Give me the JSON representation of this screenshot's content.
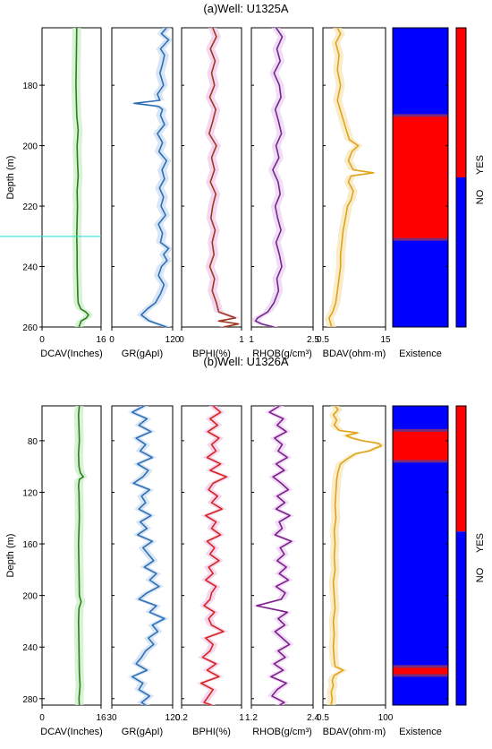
{
  "chart_data": [
    {
      "type": "line",
      "title": "(a)Well: U1325A",
      "ylabel": "Depth (m)",
      "depth_range": [
        161,
        260
      ],
      "depth_ticks": [
        180,
        200,
        220,
        240,
        260
      ],
      "tracks": [
        {
          "name": "DCAV(Inches)",
          "xlim": [
            0,
            16
          ],
          "ticks": [
            "0",
            "16"
          ],
          "color": "#2e7d1a",
          "band": "#c8efc8",
          "depth": [
            161,
            170,
            180,
            190,
            195,
            200,
            205,
            210,
            215,
            220,
            225,
            230,
            235,
            240,
            245,
            250,
            252,
            254,
            255,
            256,
            257,
            258,
            260
          ],
          "values": [
            9.4,
            9.3,
            9.2,
            9.4,
            9.8,
            9.5,
            9.6,
            9.8,
            9.5,
            9.6,
            9.5,
            9.4,
            9.5,
            9.5,
            9.6,
            9.7,
            9.8,
            10.5,
            11.8,
            12.6,
            12.0,
            10.6,
            10.0
          ]
        },
        {
          "name": "GR(gApI)",
          "xlim": [
            0,
            120
          ],
          "ticks": [
            "0",
            "120"
          ],
          "color": "#2f6fb5",
          "band": "#c9dcf2",
          "depth": [
            161,
            163,
            165,
            168,
            170,
            173,
            176,
            180,
            183,
            185,
            186,
            187,
            188,
            190,
            193,
            196,
            199,
            202,
            205,
            208,
            211,
            214,
            217,
            220,
            223,
            226,
            229,
            232,
            234,
            236,
            238,
            240,
            243,
            246,
            249,
            252,
            254,
            256,
            258,
            260
          ],
          "values": [
            108,
            98,
            112,
            96,
            104,
            100,
            95,
            102,
            90,
            95,
            44,
            92,
            100,
            96,
            104,
            90,
            100,
            93,
            108,
            99,
            104,
            94,
            102,
            97,
            106,
            92,
            100,
            96,
            112,
            102,
            109,
            98,
            92,
            103,
            96,
            86,
            70,
            58,
            74,
            108
          ]
        },
        {
          "name": "BPHI(%)",
          "xlim": [
            0,
            1
          ],
          "ticks": [
            "0",
            "1"
          ],
          "color": "#9e3a1e",
          "band": "#f2c8ec",
          "depth": [
            161,
            164,
            168,
            172,
            176,
            180,
            184,
            188,
            192,
            196,
            200,
            204,
            208,
            212,
            216,
            220,
            224,
            228,
            232,
            236,
            240,
            244,
            248,
            252,
            255,
            257,
            258,
            259,
            260
          ],
          "values": [
            0.52,
            0.58,
            0.48,
            0.56,
            0.5,
            0.55,
            0.47,
            0.57,
            0.52,
            0.46,
            0.58,
            0.5,
            0.55,
            0.48,
            0.57,
            0.52,
            0.49,
            0.56,
            0.51,
            0.54,
            0.47,
            0.55,
            0.51,
            0.58,
            0.62,
            0.9,
            0.62,
            0.95,
            0.7
          ]
        },
        {
          "name": "RHOB(g/cm³)",
          "xlim": [
            1,
            2.5
          ],
          "ticks": [
            "1",
            "2.5"
          ],
          "color": "#6f2a8c",
          "band": "#ecd0f3",
          "depth": [
            161,
            164,
            168,
            172,
            176,
            180,
            184,
            188,
            192,
            196,
            200,
            204,
            208,
            212,
            216,
            220,
            224,
            228,
            232,
            236,
            240,
            244,
            248,
            252,
            255,
            257,
            258,
            259,
            260
          ],
          "values": [
            1.6,
            1.75,
            1.62,
            1.7,
            1.55,
            1.68,
            1.72,
            1.58,
            1.66,
            1.73,
            1.6,
            1.67,
            1.52,
            1.65,
            1.7,
            1.58,
            1.64,
            1.72,
            1.6,
            1.68,
            1.74,
            1.62,
            1.66,
            1.55,
            1.4,
            1.15,
            1.1,
            1.25,
            1.55
          ]
        },
        {
          "name": "BDAV(ohm·m)",
          "xlim": [
            0.5,
            15
          ],
          "ticks": [
            "0.5",
            "15"
          ],
          "log": true,
          "color": "#e3a21a",
          "band": "#f6e7b9",
          "depth": [
            161,
            163,
            166,
            170,
            175,
            180,
            185,
            190,
            195,
            198,
            200,
            202,
            205,
            208,
            209,
            210,
            212,
            215,
            218,
            220,
            224,
            228,
            232,
            236,
            240,
            244,
            248,
            252,
            255,
            257,
            260
          ],
          "values": [
            1.1,
            1.3,
            1.0,
            1.2,
            1.1,
            1.3,
            1.1,
            1.4,
            1.8,
            2.1,
            3.4,
            2.4,
            2.0,
            2.6,
            7.8,
            2.3,
            2.0,
            2.6,
            2.3,
            1.9,
            1.7,
            1.5,
            1.4,
            1.3,
            1.3,
            1.2,
            1.1,
            1.0,
            0.85,
            0.7,
            0.8
          ]
        }
      ],
      "existence": {
        "label": "Existence",
        "scale_labels": [
          "NO",
          "YES"
        ],
        "colors": {
          "no": "#0000ff",
          "yes": "#ff0000",
          "edge": "#7a2a7a"
        },
        "yes_intervals": [
          [
            190,
            231
          ]
        ],
        "indicator_split": 0.5
      }
    },
    {
      "type": "line",
      "title": "(b)Well: U1326A",
      "ylabel": "Depth (m)",
      "depth_range": [
        53,
        285
      ],
      "depth_ticks": [
        80,
        120,
        160,
        200,
        240,
        280
      ],
      "tracks": [
        {
          "name": "DCAV(Inches)",
          "xlim": [
            0,
            16
          ],
          "ticks": [
            "0",
            "16"
          ],
          "color": "#2e7d1a",
          "band": "#c8efc8",
          "depth": [
            53,
            60,
            70,
            80,
            90,
            100,
            105,
            108,
            110,
            115,
            120,
            140,
            160,
            180,
            200,
            205,
            210,
            220,
            240,
            260,
            270,
            280,
            285
          ],
          "values": [
            10.1,
            9.9,
            10.0,
            10.1,
            9.9,
            10.0,
            10.4,
            11.2,
            10.1,
            9.9,
            10.0,
            10.1,
            9.9,
            10.0,
            10.1,
            10.6,
            10.0,
            9.9,
            10.0,
            10.1,
            10.3,
            10.0,
            10.1
          ]
        },
        {
          "name": "GR(gApI)",
          "xlim": [
            30,
            120
          ],
          "ticks": [
            "30",
            "120"
          ],
          "color": "#2f6fb5",
          "band": "#c9dcf2",
          "depth": [
            53,
            58,
            63,
            68,
            73,
            78,
            83,
            88,
            93,
            98,
            103,
            108,
            113,
            118,
            123,
            128,
            133,
            138,
            143,
            148,
            153,
            158,
            163,
            168,
            173,
            178,
            183,
            188,
            193,
            198,
            203,
            208,
            213,
            218,
            223,
            228,
            233,
            238,
            243,
            248,
            253,
            258,
            263,
            268,
            273,
            278,
            283,
            285
          ],
          "values": [
            78,
            60,
            82,
            70,
            88,
            66,
            80,
            72,
            90,
            68,
            84,
            76,
            62,
            86,
            74,
            80,
            70,
            88,
            72,
            82,
            68,
            90,
            76,
            84,
            92,
            78,
            96,
            86,
            100,
            82,
            70,
            96,
            86,
            108,
            90,
            98,
            84,
            92,
            80,
            74,
            66,
            82,
            60,
            76,
            70,
            86,
            74,
            80
          ]
        },
        {
          "name": "BPHI(%)",
          "xlim": [
            0.2,
            1
          ],
          "ticks": [
            "0.2",
            "1"
          ],
          "color": "#d8251b",
          "band": "#f2c8ec",
          "depth": [
            53,
            58,
            63,
            68,
            73,
            78,
            83,
            88,
            93,
            98,
            103,
            108,
            113,
            118,
            123,
            128,
            133,
            138,
            143,
            148,
            153,
            158,
            163,
            168,
            173,
            178,
            183,
            188,
            193,
            198,
            203,
            208,
            213,
            218,
            223,
            228,
            233,
            238,
            243,
            248,
            253,
            258,
            263,
            268,
            273,
            278,
            283,
            285
          ],
          "values": [
            0.62,
            0.72,
            0.58,
            0.68,
            0.55,
            0.7,
            0.6,
            0.66,
            0.54,
            0.72,
            0.58,
            0.8,
            0.62,
            0.56,
            0.68,
            0.6,
            0.74,
            0.52,
            0.66,
            0.6,
            0.72,
            0.54,
            0.64,
            0.58,
            0.7,
            0.56,
            0.62,
            0.52,
            0.66,
            0.6,
            0.58,
            0.5,
            0.64,
            0.56,
            0.6,
            0.76,
            0.52,
            0.62,
            0.58,
            0.48,
            0.66,
            0.54,
            0.7,
            0.46,
            0.62,
            0.56,
            0.5,
            0.6
          ]
        },
        {
          "name": "RHOB(g/cm³)",
          "xlim": [
            1.2,
            2.4
          ],
          "ticks": [
            "1.2",
            "2.4"
          ],
          "color": "#7d1f8c",
          "band": "#ecd0f3",
          "depth": [
            53,
            58,
            63,
            68,
            73,
            78,
            83,
            88,
            93,
            98,
            103,
            108,
            113,
            118,
            123,
            128,
            133,
            138,
            143,
            148,
            153,
            158,
            163,
            168,
            173,
            178,
            183,
            188,
            193,
            198,
            203,
            208,
            213,
            218,
            223,
            228,
            233,
            238,
            243,
            248,
            253,
            258,
            263,
            268,
            273,
            278,
            283,
            285
          ],
          "values": [
            1.75,
            1.55,
            1.82,
            1.7,
            1.88,
            1.65,
            1.8,
            1.72,
            1.9,
            1.68,
            1.84,
            1.62,
            1.78,
            1.92,
            1.7,
            1.85,
            1.68,
            1.95,
            1.74,
            1.8,
            1.66,
            1.98,
            1.76,
            1.84,
            1.7,
            1.88,
            1.74,
            1.92,
            1.68,
            1.86,
            1.78,
            1.3,
            1.9,
            1.72,
            1.85,
            1.66,
            1.8,
            1.94,
            1.72,
            1.86,
            1.64,
            1.82,
            1.58,
            1.88,
            1.7,
            1.6,
            1.84,
            1.75
          ]
        },
        {
          "name": "BDAV(ohm·m)",
          "xlim": [
            0.5,
            100
          ],
          "ticks": [
            "0.5",
            "100"
          ],
          "log": true,
          "color": "#e3a21a",
          "band": "#f6e7b9",
          "depth": [
            53,
            56,
            60,
            64,
            68,
            72,
            74,
            76,
            78,
            80,
            82,
            84,
            86,
            88,
            90,
            94,
            98,
            104,
            110,
            120,
            130,
            140,
            150,
            160,
            170,
            180,
            190,
            200,
            210,
            220,
            230,
            240,
            250,
            255,
            258,
            262,
            266,
            270,
            275,
            280,
            285
          ],
          "values": [
            1.4,
            1.8,
            1.2,
            1.6,
            1.3,
            2.0,
            9.5,
            3.5,
            6.0,
            14,
            55,
            70,
            40,
            25,
            8.0,
            4.0,
            2.2,
            1.8,
            1.6,
            1.5,
            1.4,
            1.5,
            1.3,
            1.4,
            1.3,
            1.4,
            1.2,
            1.3,
            1.4,
            1.2,
            1.3,
            1.2,
            1.3,
            1.4,
            2.8,
            1.3,
            1.1,
            1.2,
            1.0,
            1.1,
            1.0
          ]
        }
      ],
      "existence": {
        "label": "Existence",
        "scale_labels": [
          "NO",
          "YES"
        ],
        "colors": {
          "no": "#0000ff",
          "yes": "#ff0000",
          "edge": "#7a2a7a"
        },
        "yes_intervals": [
          [
            72,
            96
          ],
          [
            255,
            262
          ]
        ],
        "indicator_split": 0.42
      }
    }
  ]
}
